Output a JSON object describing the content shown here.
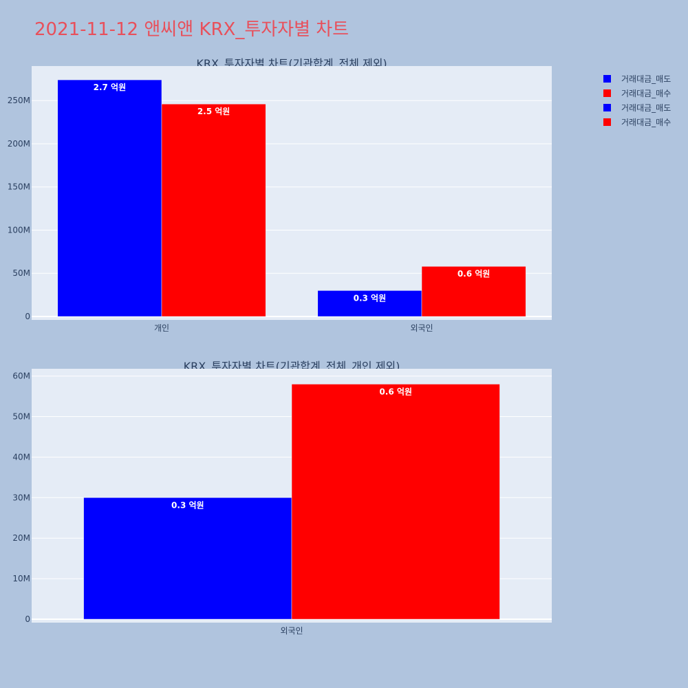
{
  "page": {
    "title": "2021-11-12 앤씨앤 KRX_투자자별 차트"
  },
  "legend": [
    {
      "name": "거래대금_매도",
      "color": "#0000ff"
    },
    {
      "name": "거래대금_매수",
      "color": "#ff0000"
    },
    {
      "name": "거래대금_매도",
      "color": "#0000ff"
    },
    {
      "name": "거래대금_매수",
      "color": "#ff0000"
    }
  ],
  "chart_data": [
    {
      "type": "bar",
      "title": "KRX_투자자별 차트(기관합계_전체 제외)",
      "categories": [
        "개인",
        "외국인"
      ],
      "series": [
        {
          "name": "거래대금_매도",
          "color": "#0000ff",
          "values": [
            274000000,
            30000000
          ],
          "labels": [
            "2.7 억원",
            "0.3 억원"
          ]
        },
        {
          "name": "거래대금_매수",
          "color": "#ff0000",
          "values": [
            246000000,
            58000000
          ],
          "labels": [
            "2.5 억원",
            "0.6 억원"
          ]
        }
      ],
      "ylim": [
        0,
        290000000
      ],
      "yticks": [
        0,
        50000000,
        100000000,
        150000000,
        200000000,
        250000000
      ],
      "ytick_labels": [
        "0",
        "50M",
        "100M",
        "150M",
        "200M",
        "250M"
      ],
      "background": "#e5ecf6",
      "grid": true
    },
    {
      "type": "bar",
      "title": "KRX_투자자별 차트(기관합계_전체_개인 제외)",
      "categories": [
        "외국인"
      ],
      "series": [
        {
          "name": "거래대금_매도",
          "color": "#0000ff",
          "values": [
            30000000
          ],
          "labels": [
            "0.3 억원"
          ]
        },
        {
          "name": "거래대금_매수",
          "color": "#ff0000",
          "values": [
            58000000
          ],
          "labels": [
            "0.6 억원"
          ]
        }
      ],
      "ylim": [
        0,
        61800000
      ],
      "yticks": [
        0,
        10000000,
        20000000,
        30000000,
        40000000,
        50000000,
        60000000
      ],
      "ytick_labels": [
        "0",
        "10M",
        "20M",
        "30M",
        "40M",
        "50M",
        "60M"
      ],
      "background": "#e5ecf6",
      "grid": true
    }
  ]
}
